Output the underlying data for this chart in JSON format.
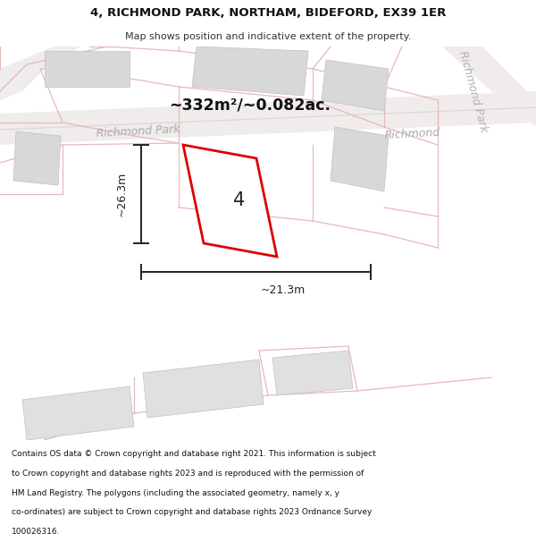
{
  "title_line1": "4, RICHMOND PARK, NORTHAM, BIDEFORD, EX39 1ER",
  "title_line2": "Map shows position and indicative extent of the property.",
  "area_text": "~332m²/~0.082ac.",
  "number_label": "4",
  "dim_vertical": "~26.3m",
  "dim_horizontal": "~21.3m",
  "road_label_bottom": "Richmond Park",
  "road_label_right": "Richmond Park",
  "footer_lines": [
    "Contains OS data © Crown copyright and database right 2021. This information is subject",
    "to Crown copyright and database rights 2023 and is reproduced with the permission of",
    "HM Land Registry. The polygons (including the associated geometry, namely x, y",
    "co-ordinates) are subject to Crown copyright and database rights 2023 Ordnance Survey",
    "100026316."
  ],
  "map_bg": "#ffffff",
  "road_fill": "#ece8e8",
  "road_pink": "#e8b8b8",
  "building_fill": "#d8d8d8",
  "building_stroke": "#c0c0c0",
  "highlight_stroke": "#dd0000",
  "highlight_lw": 2.0,
  "dim_color": "#222222",
  "footer_color": "#111111",
  "title_color": "#111111"
}
